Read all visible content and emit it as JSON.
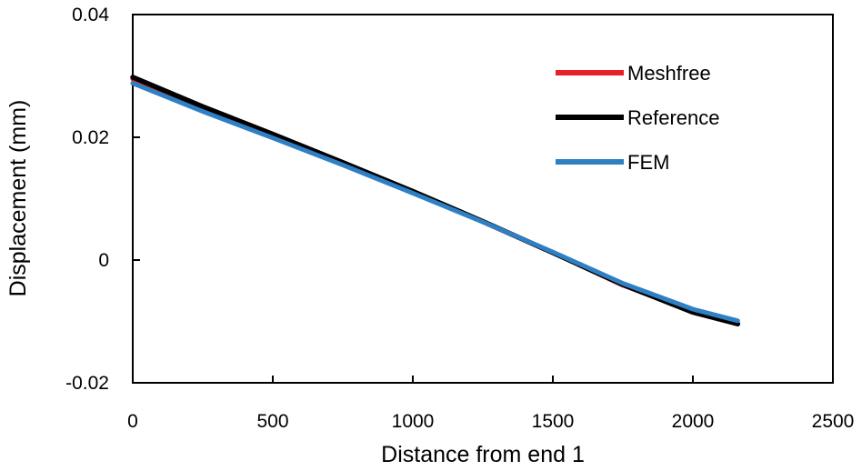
{
  "chart_data": {
    "type": "line",
    "title": "",
    "xlabel": "Distance from end 1",
    "ylabel": "Displacement (mm)",
    "xlim": [
      0,
      2500
    ],
    "ylim": [
      -0.02,
      0.04
    ],
    "xticks": [
      0,
      500,
      1000,
      1500,
      2000,
      2500
    ],
    "xtick_labels": [
      "0",
      "500",
      "1000",
      "1500",
      "2000",
      "2500"
    ],
    "yticks": [
      -0.02,
      0,
      0.02,
      0.04
    ],
    "ytick_labels": [
      "-0.02",
      "0",
      "0.02",
      "0.04"
    ],
    "grid": false,
    "legend_position": "top-right",
    "series": [
      {
        "name": "Meshfree",
        "color": "#e8202a",
        "x": [
          0,
          250,
          500,
          750,
          1000,
          1250,
          1500,
          1750,
          2000,
          2160
        ],
        "y": [
          0.0295,
          0.0247,
          0.0203,
          0.0158,
          0.0111,
          0.0062,
          0.0012,
          -0.0041,
          -0.0084,
          -0.0104
        ]
      },
      {
        "name": "Reference",
        "color": "#000000",
        "x": [
          0,
          250,
          500,
          750,
          1000,
          1250,
          1500,
          1750,
          2000,
          2160
        ],
        "y": [
          0.0298,
          0.025,
          0.0205,
          0.0159,
          0.0112,
          0.0063,
          0.0012,
          -0.004,
          -0.0085,
          -0.0104
        ]
      },
      {
        "name": "FEM",
        "color": "#2e7fc4",
        "x": [
          0,
          250,
          500,
          750,
          1000,
          1250,
          1500,
          1750,
          2000,
          2160
        ],
        "y": [
          0.0288,
          0.0242,
          0.0199,
          0.0155,
          0.0109,
          0.0062,
          0.0013,
          -0.0038,
          -0.008,
          -0.0099
        ]
      }
    ]
  }
}
